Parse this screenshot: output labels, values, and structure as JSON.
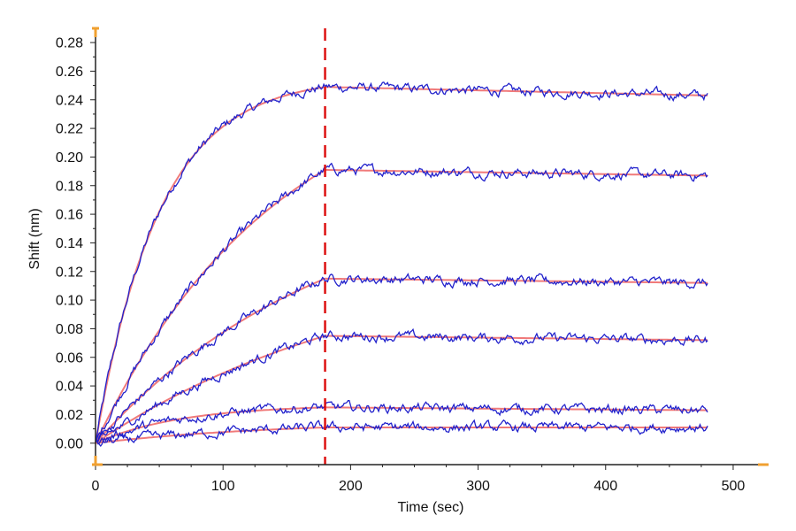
{
  "chart_data": {
    "type": "line",
    "title": "",
    "xlabel": "Time (sec)",
    "ylabel": "Shift (nm)",
    "xlim": [
      0,
      525
    ],
    "ylim": [
      -0.015,
      0.285
    ],
    "x_ticks": [
      0,
      100,
      200,
      300,
      400,
      500
    ],
    "x_tick_labels": [
      "0",
      "100",
      "200",
      "300",
      "400",
      "500"
    ],
    "y_ticks": [
      0.0,
      0.02,
      0.04,
      0.06,
      0.08,
      0.1,
      0.12,
      0.14,
      0.16,
      0.18,
      0.2,
      0.22,
      0.24,
      0.26,
      0.28
    ],
    "y_tick_labels": [
      "0.00",
      "0.02",
      "0.04",
      "0.06",
      "0.08",
      "0.10",
      "0.12",
      "0.14",
      "0.16",
      "0.18",
      "0.20",
      "0.22",
      "0.24",
      "0.26",
      "0.28"
    ],
    "grid": false,
    "legend": false,
    "association_end_time": 180,
    "end_time": 480,
    "colors": {
      "data": "#2222cc",
      "fit": "#f07a7a",
      "marker_line": "#dd1111",
      "axis": "#222222",
      "axis_end_marks": "#f0a030"
    },
    "series": [
      {
        "plateau_180": 0.249,
        "value_480": 0.243,
        "association_shape": 0.02
      },
      {
        "plateau_180": 0.191,
        "value_480": 0.187,
        "association_shape": 0.007
      },
      {
        "plateau_180": 0.115,
        "value_480": 0.112,
        "association_shape": 0.0055
      },
      {
        "plateau_180": 0.075,
        "value_480": 0.072,
        "association_shape": 0.0045
      },
      {
        "plateau_180": 0.025,
        "value_480": 0.023,
        "association_shape": 0.015
      },
      {
        "plateau_180": 0.011,
        "value_480": 0.011,
        "association_shape": 0.007
      }
    ]
  }
}
